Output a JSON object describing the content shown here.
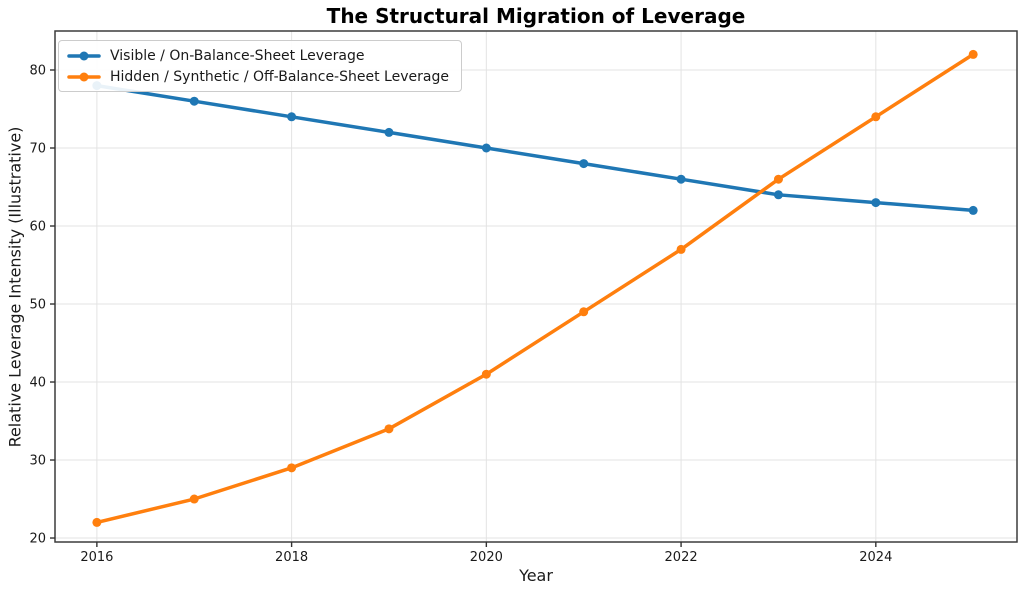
{
  "chart_data": {
    "type": "line",
    "title": "The Structural Migration of Leverage",
    "xlabel": "Year",
    "ylabel": "Relative Leverage Intensity (Illustrative)",
    "x": [
      2016,
      2017,
      2018,
      2019,
      2020,
      2021,
      2022,
      2023,
      2024,
      2025
    ],
    "series": [
      {
        "name": "Visible / On-Balance-Sheet Leverage",
        "color": "#1f77b4",
        "values": [
          78,
          76,
          74,
          72,
          70,
          68,
          66,
          64,
          63,
          62
        ]
      },
      {
        "name": "Hidden / Synthetic / Off-Balance-Sheet Leverage",
        "color": "#ff7f0e",
        "values": [
          22,
          25,
          29,
          34,
          41,
          49,
          57,
          66,
          74,
          82
        ]
      }
    ],
    "x_ticks": [
      2016,
      2018,
      2020,
      2022,
      2024
    ],
    "y_ticks": [
      20,
      30,
      40,
      50,
      60,
      70,
      80
    ],
    "xlim": [
      2015.57,
      2025.45
    ],
    "ylim": [
      19.49,
      85.0
    ],
    "grid": true,
    "legend_position": "upper-left",
    "style": {
      "grid_color": "#e3e3e3",
      "spine_color": "#3c3c3c",
      "tick_color": "#333333",
      "tick_label_color": "#1a1a1a",
      "line_width": 3.5,
      "marker_radius": 4.5
    }
  }
}
